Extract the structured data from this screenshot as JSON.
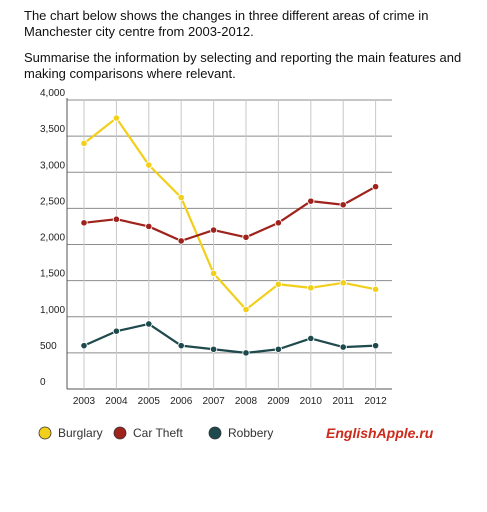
{
  "prompt": {
    "line1": "The chart below shows the changes in three different areas of crime in Manchester city centre from 2003-2012.",
    "line2": "Summarise the information by selecting and reporting the main features and making comparisons where relevant."
  },
  "brand": "EnglishApple.ru",
  "chart_data": {
    "type": "line",
    "title": "",
    "xlabel": "",
    "ylabel": "",
    "x": [
      "2003",
      "2004",
      "2005",
      "2006",
      "2007",
      "2008",
      "2009",
      "2010",
      "2011",
      "2012"
    ],
    "ylim": [
      0,
      4000
    ],
    "yticks": [
      "0",
      "500",
      "1,000",
      "1,500",
      "2,000",
      "2,500",
      "3,000",
      "3,500",
      "4,000"
    ],
    "grid": "horizontal",
    "legend_position": "bottom",
    "series": [
      {
        "name": "Burglary",
        "color": "#f2cf1a",
        "values": [
          3400,
          3750,
          3100,
          2650,
          1600,
          1100,
          1450,
          1400,
          1470,
          1380
        ]
      },
      {
        "name": "Car Theft",
        "color": "#a0221c",
        "values": [
          2300,
          2350,
          2250,
          2050,
          2200,
          2100,
          2300,
          2600,
          2550,
          2800
        ]
      },
      {
        "name": "Robbery",
        "color": "#1f4a4d",
        "values": [
          600,
          800,
          900,
          600,
          550,
          500,
          550,
          700,
          580,
          600
        ]
      }
    ]
  }
}
